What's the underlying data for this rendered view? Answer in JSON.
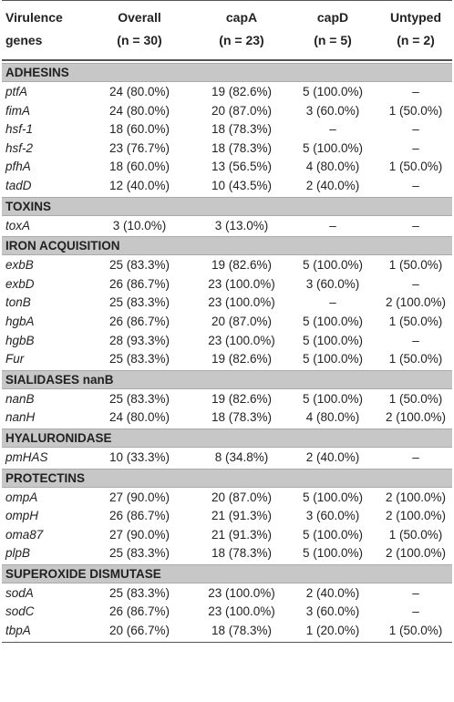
{
  "header": {
    "genes": [
      "Virulence",
      "genes"
    ],
    "overall": [
      "Overall",
      "(n = 30)"
    ],
    "capA": [
      "capA",
      "(n = 23)"
    ],
    "capD": [
      "capD",
      "(n = 5)"
    ],
    "untyped": [
      "Untyped",
      "(n = 2)"
    ]
  },
  "sections": [
    {
      "title": "ADHESINS",
      "rows": [
        [
          "ptfA",
          "24 (80.0%)",
          "19 (82.6%)",
          "5 (100.0%)",
          "–"
        ],
        [
          "fimA",
          "24 (80.0%)",
          "20 (87.0%)",
          "3 (60.0%)",
          "1 (50.0%)"
        ],
        [
          "hsf-1",
          "18 (60.0%)",
          "18 (78.3%)",
          "–",
          "–"
        ],
        [
          "hsf-2",
          "23 (76.7%)",
          "18 (78.3%)",
          "5 (100.0%)",
          "–"
        ],
        [
          "pfhA",
          "18 (60.0%)",
          "13 (56.5%)",
          "4 (80.0%)",
          "1 (50.0%)"
        ],
        [
          "tadD",
          "12 (40.0%)",
          "10 (43.5%)",
          "2 (40.0%)",
          "–"
        ]
      ]
    },
    {
      "title": "TOXINS",
      "rows": [
        [
          "toxA",
          "3 (10.0%)",
          "3 (13.0%)",
          "–",
          "–"
        ]
      ]
    },
    {
      "title": "IRON ACQUISITION",
      "rows": [
        [
          "exbB",
          "25 (83.3%)",
          "19 (82.6%)",
          "5 (100.0%)",
          "1 (50.0%)"
        ],
        [
          "exbD",
          "26 (86.7%)",
          "23 (100.0%)",
          "3 (60.0%)",
          "–"
        ],
        [
          "tonB",
          "25 (83.3%)",
          "23 (100.0%)",
          "–",
          "2 (100.0%)"
        ],
        [
          "hgbA",
          "26 (86.7%)",
          "20 (87.0%)",
          "5 (100.0%)",
          "1 (50.0%)"
        ],
        [
          "hgbB",
          "28 (93.3%)",
          "23 (100.0%)",
          "5 (100.0%)",
          "–"
        ],
        [
          "Fur",
          "25 (83.3%)",
          "19 (82.6%)",
          "5 (100.0%)",
          "1 (50.0%)"
        ]
      ]
    },
    {
      "title": "SIALIDASES nanB",
      "rows": [
        [
          "nanB",
          "25 (83.3%)",
          "19 (82.6%)",
          "5 (100.0%)",
          "1 (50.0%)"
        ],
        [
          "nanH",
          "24 (80.0%)",
          "18 (78.3%)",
          "4 (80.0%)",
          "2 (100.0%)"
        ]
      ]
    },
    {
      "title": "HYALURONIDASE",
      "rows": [
        [
          "pmHAS",
          "10 (33.3%)",
          "8 (34.8%)",
          "2 (40.0%)",
          "–"
        ]
      ]
    },
    {
      "title": "PROTECTINS",
      "rows": [
        [
          "ompA",
          "27 (90.0%)",
          "20 (87.0%)",
          "5 (100.0%)",
          "2 (100.0%)"
        ],
        [
          "ompH",
          "26 (86.7%)",
          "21 (91.3%)",
          "3 (60.0%)",
          "2 (100.0%)"
        ],
        [
          "oma87",
          "27 (90.0%)",
          "21 (91.3%)",
          "5 (100.0%)",
          "1 (50.0%)"
        ],
        [
          "plpB",
          "25 (83.3%)",
          "18 (78.3%)",
          "5 (100.0%)",
          "2 (100.0%)"
        ]
      ]
    },
    {
      "title": "SUPEROXIDE DISMUTASE",
      "rows": [
        [
          "sodA",
          "25 (83.3%)",
          "23 (100.0%)",
          "2 (40.0%)",
          "–"
        ],
        [
          "sodC",
          "26 (86.7%)",
          "23 (100.0%)",
          "3 (60.0%)",
          "–"
        ],
        [
          "tbpA",
          "20 (66.7%)",
          "18 (78.3%)",
          "1 (20.0%)",
          "1 (50.0%)"
        ]
      ]
    }
  ]
}
